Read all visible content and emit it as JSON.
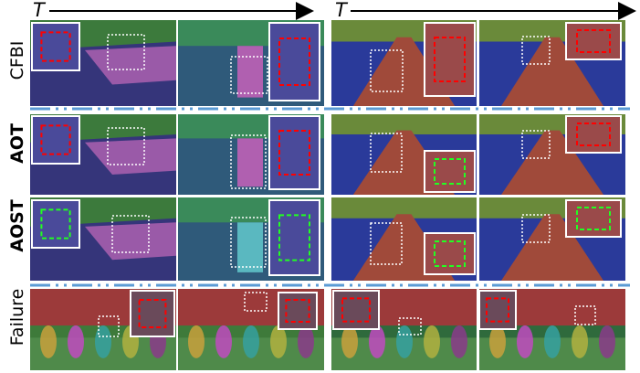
{
  "header": {
    "time_label_left": "T",
    "time_label_right": "T"
  },
  "rows": [
    {
      "label": "CFBI"
    },
    {
      "label": "AOT"
    },
    {
      "label": "AOST"
    },
    {
      "label": "Failure"
    }
  ]
}
